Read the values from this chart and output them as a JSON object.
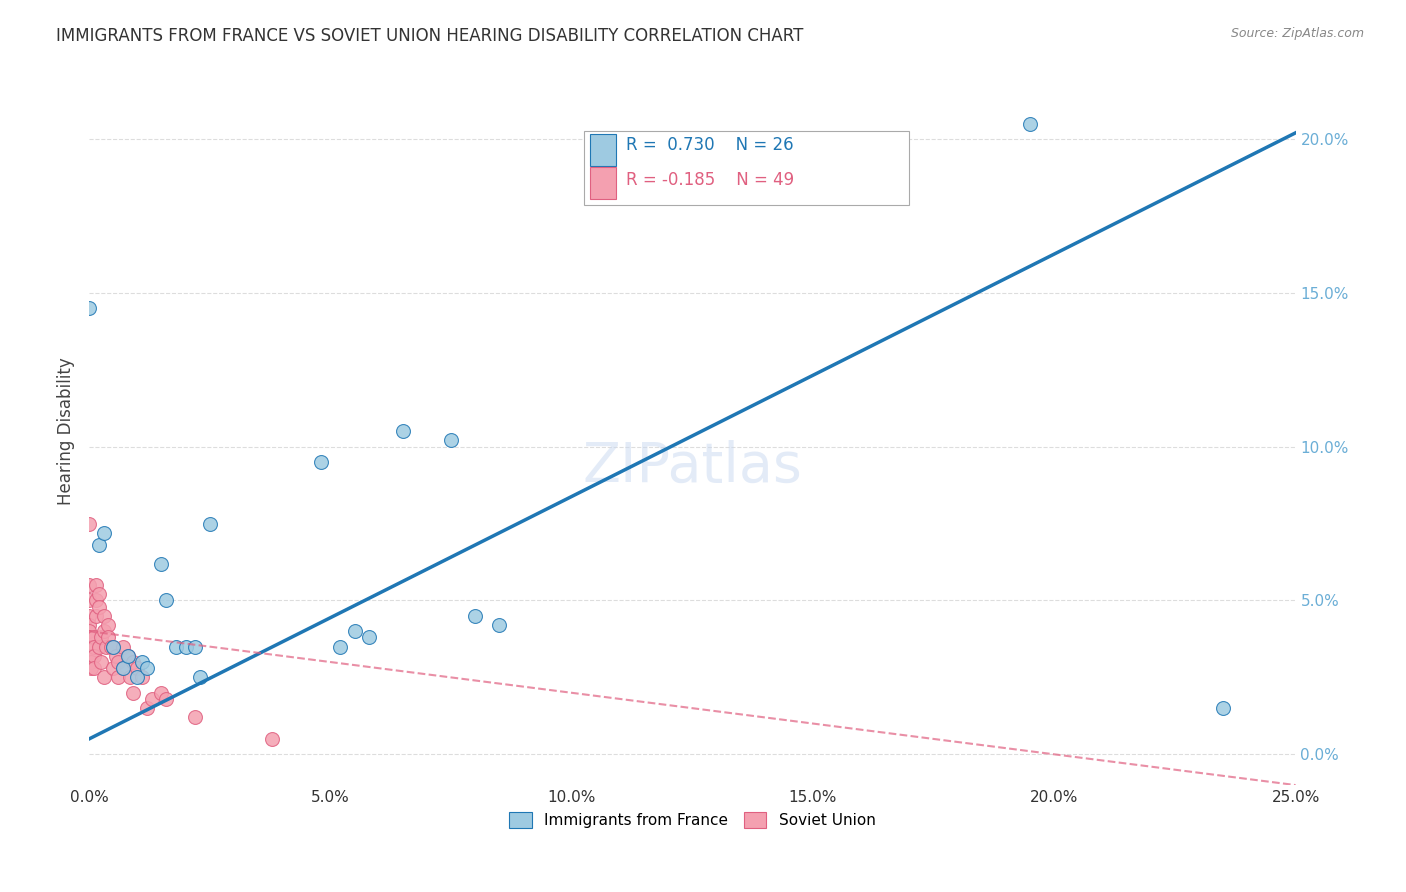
{
  "title": "IMMIGRANTS FROM FRANCE VS SOVIET UNION HEARING DISABILITY CORRELATION CHART",
  "source": "Source: ZipAtlas.com",
  "xlabel_vals": [
    0.0,
    5.0,
    10.0,
    15.0,
    20.0,
    25.0
  ],
  "ylabel_vals": [
    0.0,
    5.0,
    10.0,
    15.0,
    20.0
  ],
  "ylabel_label": "Hearing Disability",
  "xlim": [
    0.0,
    25.0
  ],
  "ylim": [
    -1.0,
    22.0
  ],
  "france_R": 0.73,
  "france_N": 26,
  "soviet_R": -0.185,
  "soviet_N": 49,
  "france_color": "#9ecae1",
  "france_line_color": "#1f77b4",
  "soviet_color": "#f4a0b0",
  "soviet_line_color": "#e06080",
  "france_scatter_x": [
    0.0,
    0.2,
    0.3,
    0.5,
    0.7,
    0.8,
    1.0,
    1.1,
    1.2,
    1.5,
    1.6,
    1.8,
    2.0,
    2.2,
    2.3,
    2.5,
    4.8,
    5.2,
    5.5,
    5.8,
    6.5,
    7.5,
    8.0,
    8.5,
    19.5,
    23.5
  ],
  "france_scatter_y": [
    14.5,
    6.8,
    7.2,
    3.5,
    2.8,
    3.2,
    2.5,
    3.0,
    2.8,
    6.2,
    5.0,
    3.5,
    3.5,
    3.5,
    2.5,
    7.5,
    9.5,
    3.5,
    4.0,
    3.8,
    10.5,
    10.2,
    4.5,
    4.2,
    20.5,
    1.5
  ],
  "soviet_scatter_x": [
    0.0,
    0.0,
    0.0,
    0.0,
    0.0,
    0.0,
    0.0,
    0.05,
    0.05,
    0.05,
    0.05,
    0.1,
    0.1,
    0.1,
    0.1,
    0.15,
    0.15,
    0.15,
    0.2,
    0.2,
    0.2,
    0.25,
    0.25,
    0.3,
    0.3,
    0.3,
    0.35,
    0.4,
    0.4,
    0.45,
    0.5,
    0.5,
    0.55,
    0.6,
    0.6,
    0.7,
    0.7,
    0.8,
    0.85,
    0.9,
    0.9,
    1.0,
    1.1,
    1.2,
    1.3,
    1.5,
    1.6,
    2.2,
    3.8
  ],
  "soviet_scatter_y": [
    7.5,
    5.5,
    5.0,
    4.5,
    4.2,
    4.0,
    3.8,
    3.5,
    3.2,
    3.0,
    2.8,
    3.8,
    3.5,
    3.2,
    2.8,
    5.5,
    5.0,
    4.5,
    5.2,
    4.8,
    3.5,
    3.8,
    3.0,
    4.5,
    4.0,
    2.5,
    3.5,
    4.2,
    3.8,
    3.5,
    3.5,
    2.8,
    3.2,
    3.0,
    2.5,
    3.5,
    2.8,
    3.2,
    2.5,
    3.0,
    2.0,
    2.8,
    2.5,
    1.5,
    1.8,
    2.0,
    1.8,
    1.2,
    0.5
  ],
  "france_line_x0": 0.0,
  "france_line_y0": 0.5,
  "france_line_x1": 25.0,
  "france_line_y1": 20.2,
  "soviet_line_x0": 0.0,
  "soviet_line_y0": 4.0,
  "soviet_line_x1": 25.0,
  "soviet_line_y1": -1.0,
  "background_color": "#ffffff",
  "grid_color": "#dddddd",
  "right_tick_color": "#6baed6",
  "marker_size": 100
}
